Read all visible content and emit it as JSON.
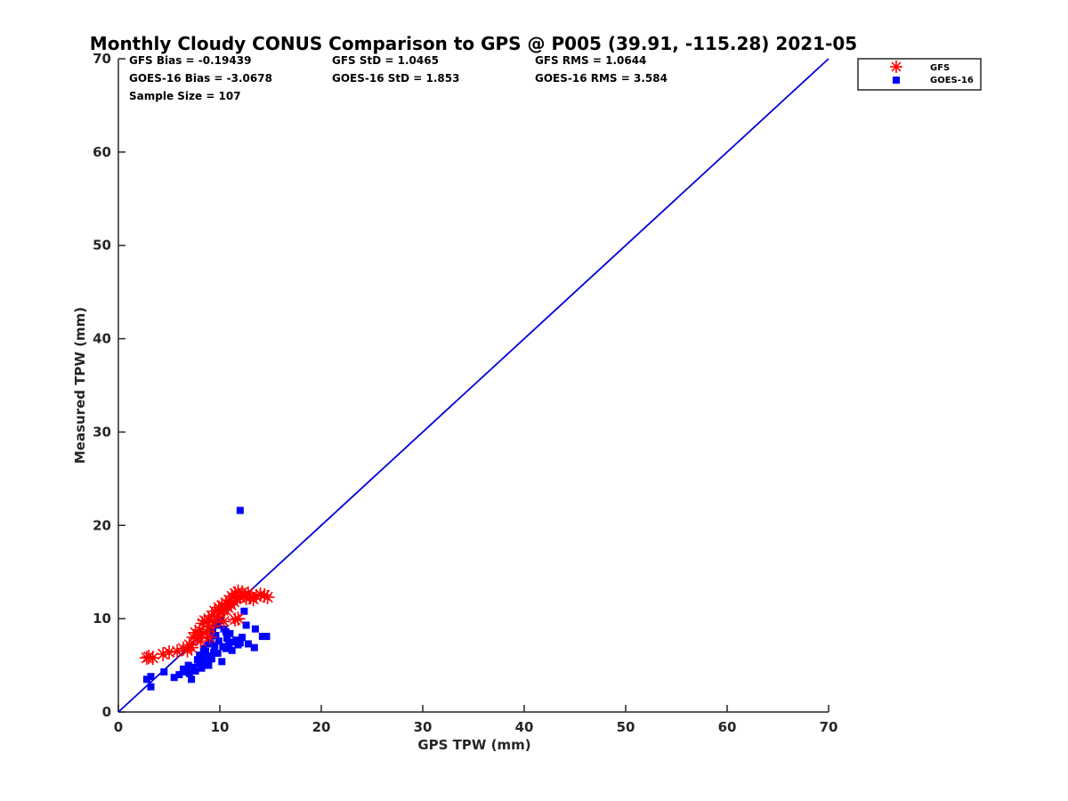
{
  "chart_data": {
    "type": "scatter",
    "title": "Monthly Cloudy CONUS Comparison to GPS @ P005 (39.91, -115.28) 2021-05",
    "xlabel": "GPS TPW (mm)",
    "ylabel": "Measured TPW (mm)",
    "xlim": [
      0,
      70
    ],
    "ylim": [
      0,
      70
    ],
    "xticks": [
      "0",
      "10",
      "20",
      "30",
      "40",
      "50",
      "60",
      "70"
    ],
    "yticks": [
      "0",
      "10",
      "20",
      "30",
      "40",
      "50",
      "60",
      "70"
    ],
    "grid": false,
    "legend_position": "outside-top-right",
    "reference_line": {
      "name": "1:1",
      "color": "#0000d8",
      "x": [
        0,
        70
      ],
      "y": [
        0,
        70
      ]
    },
    "stats": [
      [
        "GFS Bias = -0.19439",
        "GFS StD = 1.0465",
        "GFS RMS = 1.0644"
      ],
      [
        "GOES-16 Bias = -3.0678",
        "GOES-16 StD = 1.853",
        "GOES-16 RMS = 3.584"
      ],
      [
        "Sample Size = 107"
      ]
    ],
    "series": [
      {
        "name": "GFS",
        "marker": "asterisk",
        "color": "#ff0000",
        "points": [
          [
            2.8,
            5.8
          ],
          [
            3.0,
            5.9
          ],
          [
            3.4,
            5.8
          ],
          [
            4.4,
            6.2
          ],
          [
            5.0,
            6.4
          ],
          [
            5.8,
            6.5
          ],
          [
            6.4,
            6.8
          ],
          [
            6.8,
            6.6
          ],
          [
            7.0,
            7.2
          ],
          [
            7.2,
            6.9
          ],
          [
            7.4,
            8.0
          ],
          [
            7.6,
            8.5
          ],
          [
            7.8,
            7.9
          ],
          [
            8.0,
            8.8
          ],
          [
            8.2,
            8.3
          ],
          [
            8.3,
            9.5
          ],
          [
            8.5,
            9.8
          ],
          [
            8.7,
            8.6
          ],
          [
            8.9,
            9.9
          ],
          [
            9.0,
            9.1
          ],
          [
            9.2,
            10.3
          ],
          [
            9.4,
            9.6
          ],
          [
            9.5,
            10.8
          ],
          [
            9.7,
            10.2
          ],
          [
            9.9,
            11.2
          ],
          [
            10.0,
            10.6
          ],
          [
            10.2,
            11.4
          ],
          [
            10.3,
            10.9
          ],
          [
            10.5,
            11.0
          ],
          [
            10.6,
            11.7
          ],
          [
            10.8,
            11.2
          ],
          [
            10.9,
            12.0
          ],
          [
            11.1,
            11.5
          ],
          [
            11.2,
            12.4
          ],
          [
            11.4,
            11.8
          ],
          [
            11.5,
            12.7
          ],
          [
            11.7,
            12.2
          ],
          [
            11.8,
            12.9
          ],
          [
            12.0,
            12.3
          ],
          [
            12.2,
            12.8
          ],
          [
            12.4,
            12.5
          ],
          [
            12.6,
            12.2
          ],
          [
            12.8,
            12.7
          ],
          [
            13.0,
            12.3
          ],
          [
            13.3,
            12.1
          ],
          [
            13.6,
            12.4
          ],
          [
            14.0,
            12.6
          ],
          [
            14.4,
            12.5
          ],
          [
            14.7,
            12.3
          ],
          [
            11.8,
            10.0
          ],
          [
            11.5,
            9.9
          ],
          [
            9.0,
            8.0
          ],
          [
            8.1,
            7.6
          ],
          [
            10.4,
            9.7
          ]
        ]
      },
      {
        "name": "GOES-16",
        "marker": "square",
        "color": "#0000ff",
        "points": [
          [
            2.8,
            3.5
          ],
          [
            3.2,
            3.8
          ],
          [
            3.2,
            2.7
          ],
          [
            4.5,
            4.3
          ],
          [
            5.5,
            3.7
          ],
          [
            6.0,
            4.0
          ],
          [
            6.4,
            4.6
          ],
          [
            6.7,
            4.3
          ],
          [
            6.9,
            5.0
          ],
          [
            7.0,
            4.1
          ],
          [
            7.2,
            3.5
          ],
          [
            7.4,
            4.8
          ],
          [
            7.6,
            4.4
          ],
          [
            7.8,
            5.6
          ],
          [
            8.0,
            5.2
          ],
          [
            8.0,
            6.1
          ],
          [
            8.2,
            4.7
          ],
          [
            8.3,
            5.9
          ],
          [
            8.4,
            6.8
          ],
          [
            8.5,
            5.3
          ],
          [
            8.6,
            6.5
          ],
          [
            8.8,
            7.3
          ],
          [
            8.9,
            5.0
          ],
          [
            9.0,
            6.0
          ],
          [
            9.1,
            7.8
          ],
          [
            9.2,
            5.7
          ],
          [
            9.3,
            8.6
          ],
          [
            9.4,
            6.4
          ],
          [
            9.5,
            7.1
          ],
          [
            9.6,
            8.2
          ],
          [
            9.7,
            9.3
          ],
          [
            9.8,
            6.3
          ],
          [
            9.9,
            7.6
          ],
          [
            10.0,
            9.8
          ],
          [
            10.2,
            5.4
          ],
          [
            10.3,
            7.0
          ],
          [
            10.4,
            8.9
          ],
          [
            10.6,
            6.8
          ],
          [
            10.7,
            7.9
          ],
          [
            10.9,
            7.2
          ],
          [
            11.0,
            8.4
          ],
          [
            11.2,
            6.6
          ],
          [
            11.4,
            7.5
          ],
          [
            11.6,
            7.7
          ],
          [
            11.8,
            7.2
          ],
          [
            12.0,
            7.4
          ],
          [
            12.2,
            8.0
          ],
          [
            12.4,
            10.8
          ],
          [
            12.6,
            9.3
          ],
          [
            12.8,
            7.3
          ],
          [
            13.4,
            6.9
          ],
          [
            13.5,
            8.9
          ],
          [
            14.2,
            8.1
          ],
          [
            14.6,
            8.1
          ],
          [
            12.0,
            21.6
          ],
          [
            10.6,
            8.6
          ]
        ]
      }
    ]
  }
}
